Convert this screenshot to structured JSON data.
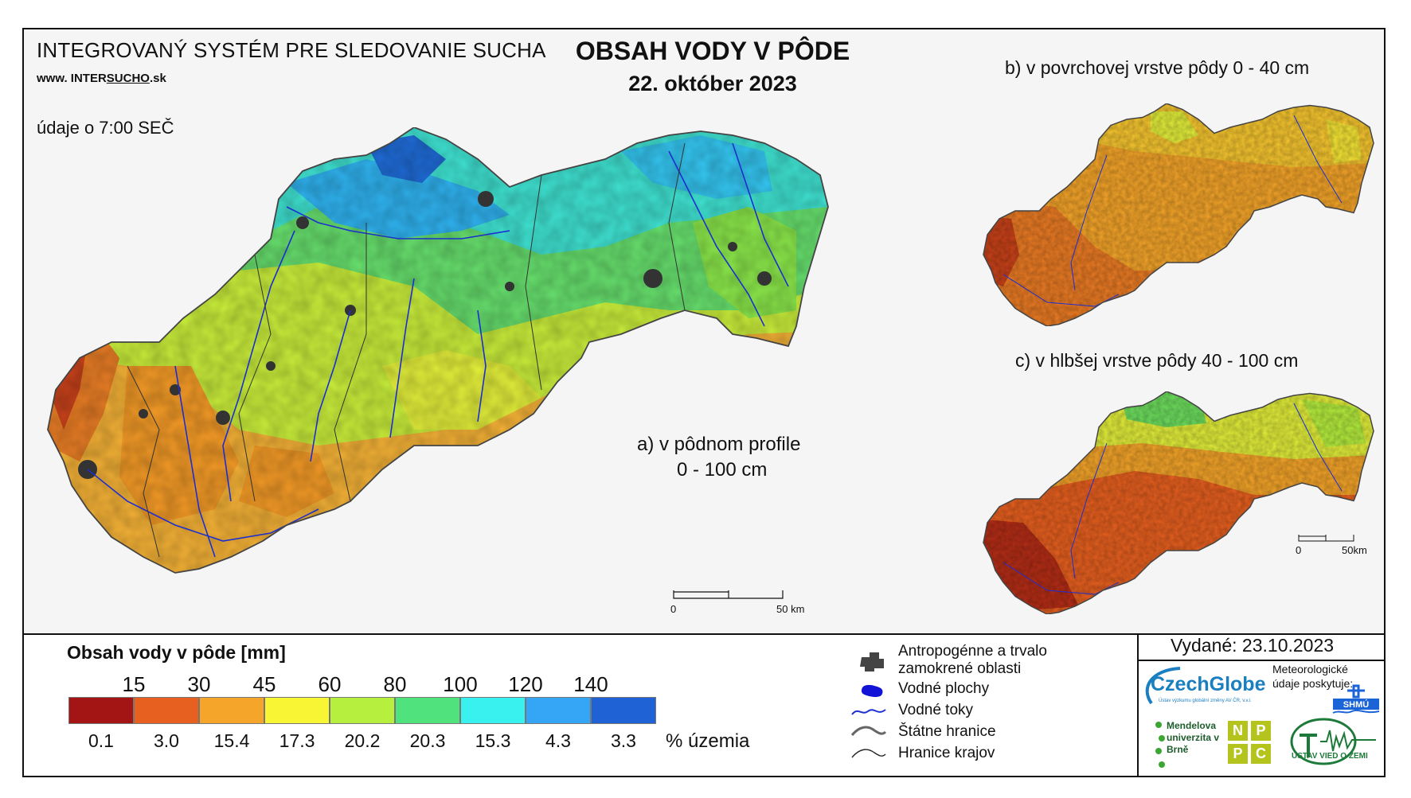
{
  "header": {
    "system_title": "INTEGROVANÝ SYSTÉM PRE SLEDOVANIE SUCHA",
    "url_prefix": "www. INTER",
    "url_brand": "SUCHO",
    "url_suffix": ".sk",
    "main_title": "OBSAH VODY V PÔDE",
    "date": "22. október 2023",
    "note": "údaje o 7:00 SEČ"
  },
  "maps": {
    "a_label_line1": "a) v pôdnom profile",
    "a_label_line2": "0 - 100 cm",
    "b_label": "b) v povrchovej vrstve pôdy 0 - 40 cm",
    "c_label": "c) v hlbšej vrstve pôdy 40 - 100 cm",
    "scale_main": {
      "start": "0",
      "end": "50 km"
    },
    "scale_small": {
      "start": "0",
      "end": "50km"
    }
  },
  "legend": {
    "title": "Obsah vody v pôde  [mm]",
    "class_breaks": [
      "15",
      "30",
      "45",
      "60",
      "80",
      "100",
      "120",
      "140"
    ],
    "colors": [
      "#a31515",
      "#e8601f",
      "#f5a529",
      "#f8f534",
      "#b6ef3d",
      "#4fe27d",
      "#39f2f0",
      "#34a6f5",
      "#1f62d6"
    ],
    "percent_area": [
      "0.1",
      "3.0",
      "15.4",
      "17.3",
      "20.2",
      "20.3",
      "15.3",
      "4.3",
      "3.3"
    ],
    "percent_label": "% územia",
    "symbols": [
      {
        "icon": "urban-area-icon",
        "label_line1": "Antropogénne a trvalo",
        "label_line2": "zamokrené oblasti"
      },
      {
        "icon": "water-body-icon",
        "label_line1": "Vodné plochy"
      },
      {
        "icon": "river-icon",
        "label_line1": "Vodné toky"
      },
      {
        "icon": "state-border-icon",
        "label_line1": "Štátne hranice"
      },
      {
        "icon": "region-border-icon",
        "label_line1": "Hranice krajov"
      }
    ]
  },
  "footer": {
    "issued": "Vydané: 23.10.2023",
    "czechglobe": "CzechGlobe",
    "czechglobe_sub": "Ústav výzkumu globální změny AV ČR, v.v.i.",
    "meteo_text": "Meteorologické údaje poskytuje:",
    "shmu": "SHMÚ",
    "mendel_text": "Mendelova univerzita v Brně",
    "npc_letters": [
      "N",
      "P",
      "P",
      "C"
    ],
    "ustav": "ÚSTAV VIED O ZEMI"
  }
}
